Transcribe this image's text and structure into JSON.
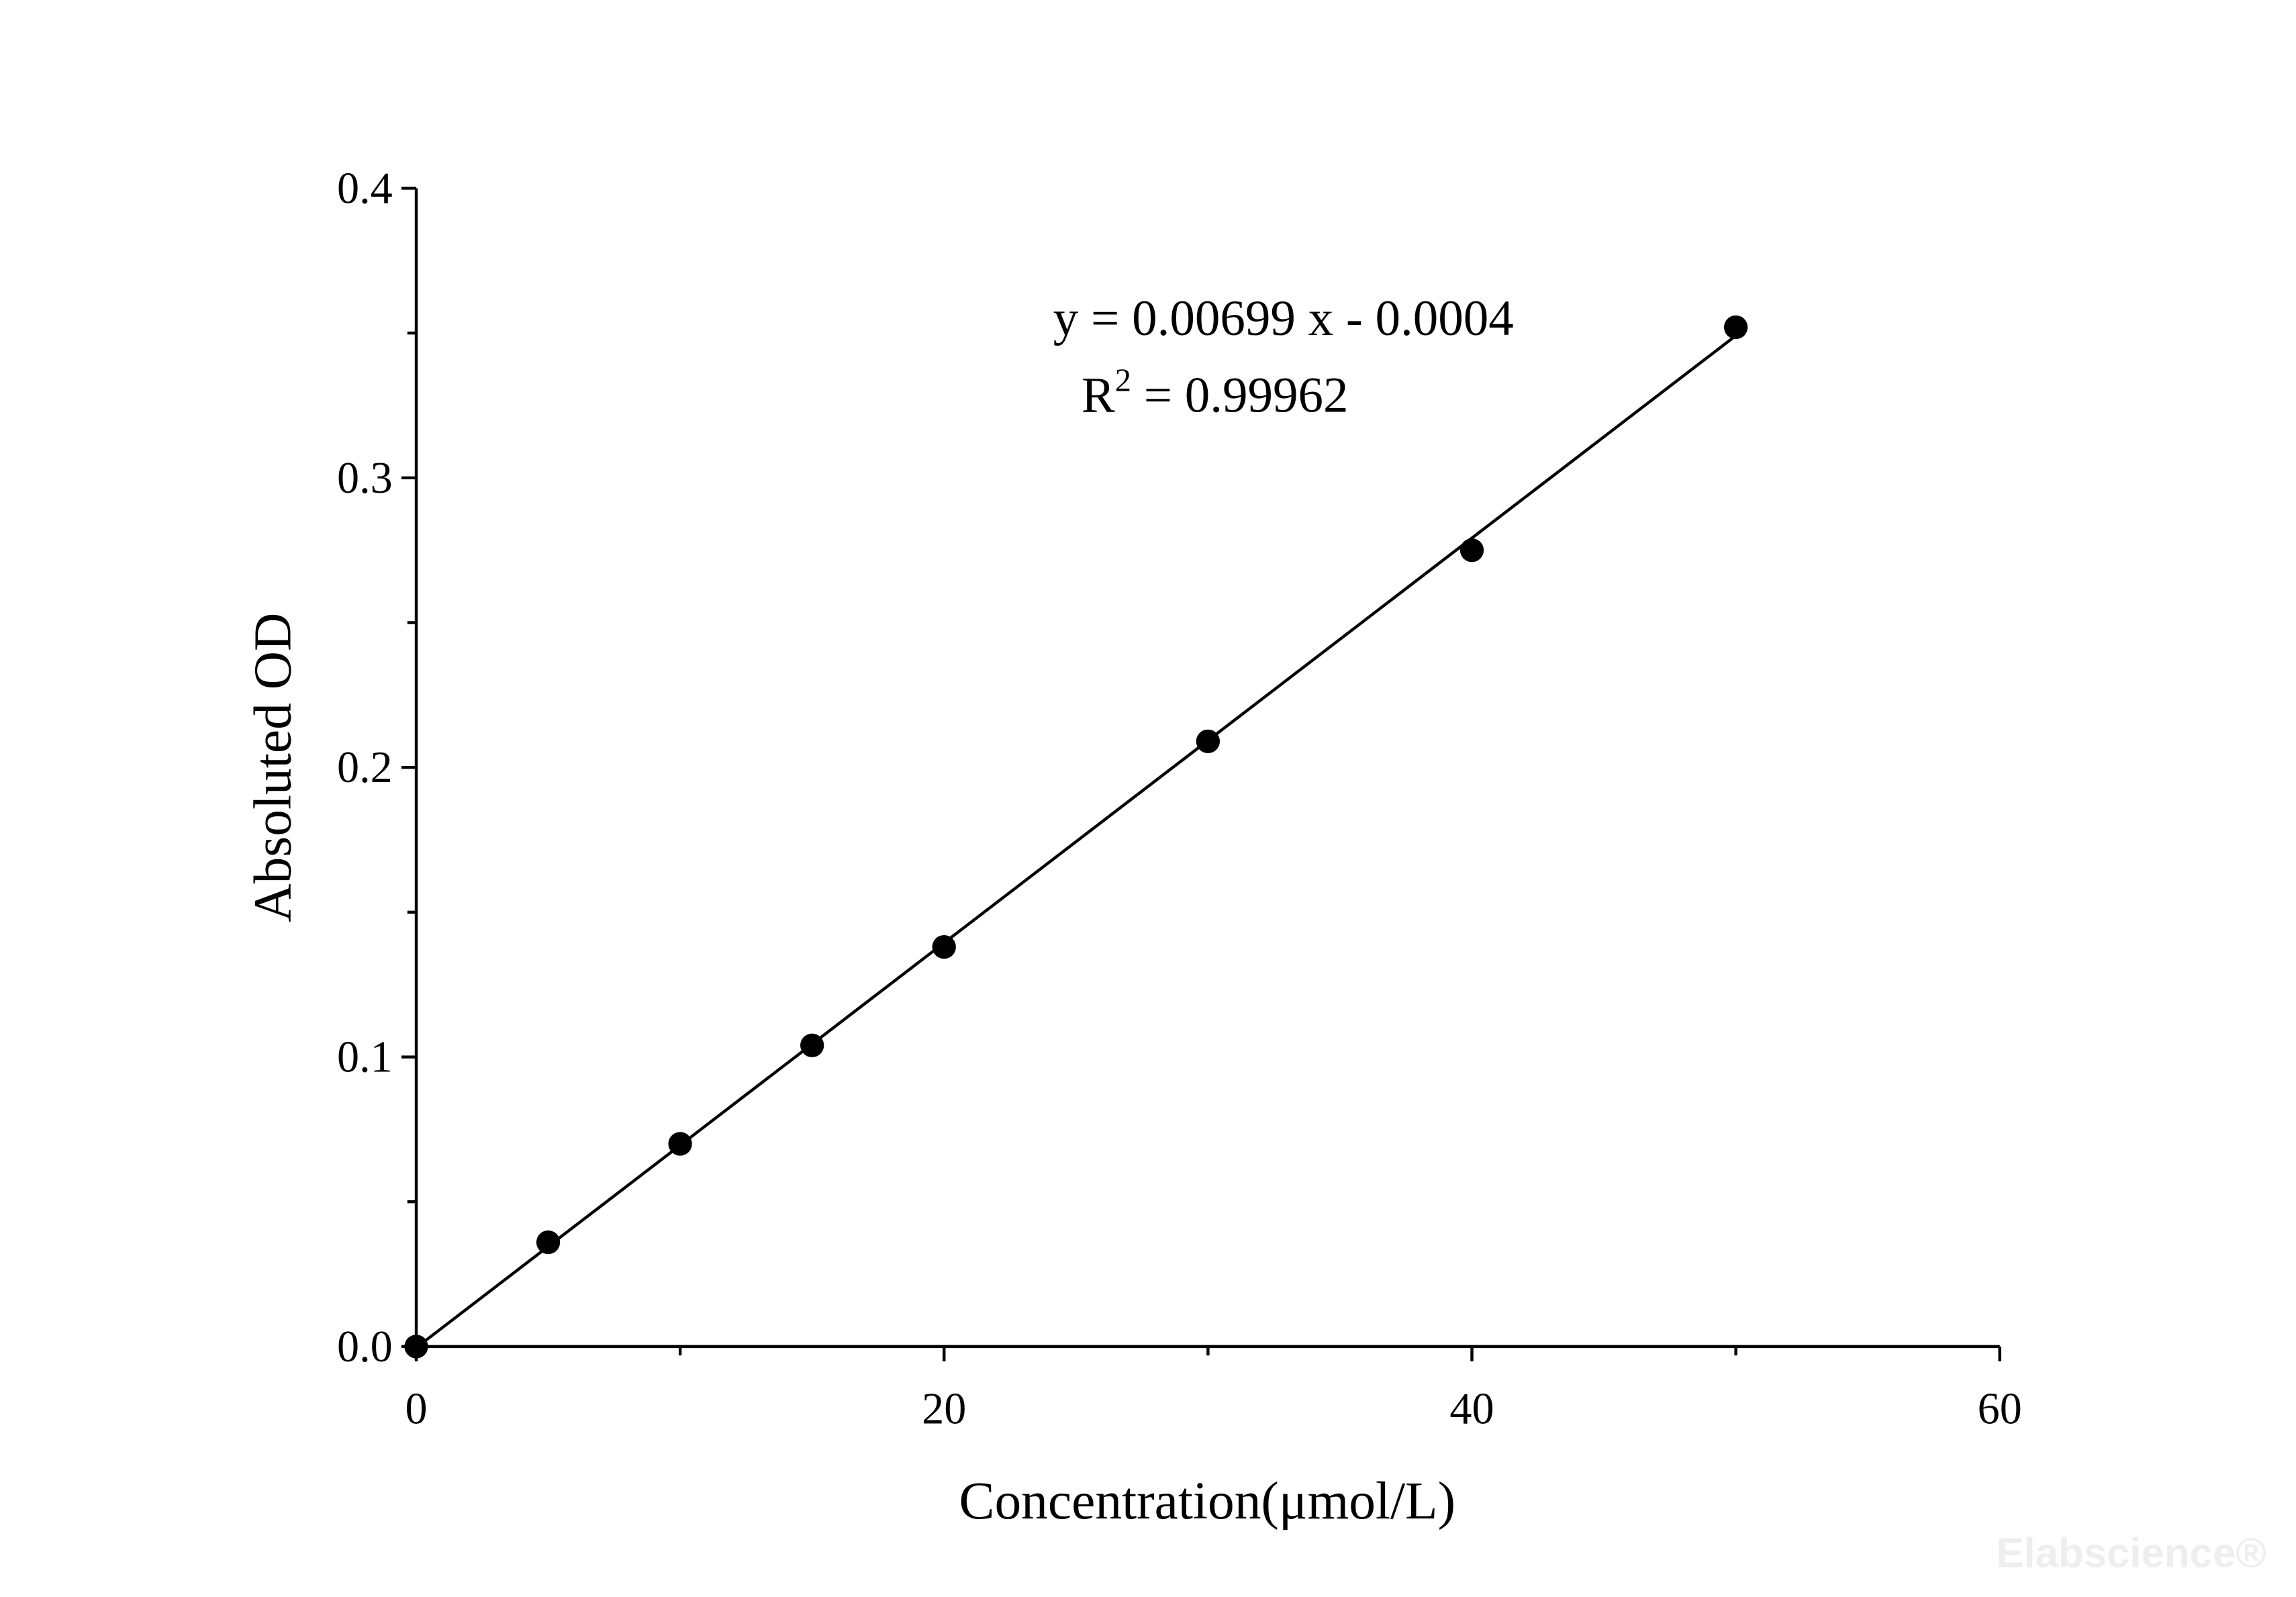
{
  "chart_data": {
    "type": "scatter",
    "x_label": "Concentration(μmol/L)",
    "y_label": "Absoluted OD",
    "annotations": [
      {
        "text": "y = 0.00699 x - 0.0004"
      },
      {
        "parts": [
          "R",
          "2",
          " = 0.99962"
        ]
      }
    ],
    "watermark": "Elabscience®",
    "series": [
      {
        "color": "#000000",
        "style": "points",
        "x": [
          0,
          5,
          10,
          15,
          20,
          30,
          40,
          50
        ],
        "values": [
          0,
          0.036,
          0.07,
          0.104,
          0.138,
          0.209,
          0.275,
          0.352
        ]
      },
      {
        "color": "#000000",
        "style": "line",
        "x": [
          0,
          50
        ],
        "values": [
          -0.0004,
          0.3491
        ]
      }
    ],
    "xlim": [
      0,
      60
    ],
    "ylim": [
      0,
      0.4
    ],
    "xticks": [
      0,
      20,
      40,
      60
    ],
    "xminor": [
      10,
      30,
      50
    ],
    "yticks": [
      {
        "value": 0,
        "label": "0.0"
      },
      {
        "value": 0.1,
        "label": "0.1"
      },
      {
        "value": 0.2,
        "label": "0.2"
      },
      {
        "value": 0.3,
        "label": "0.3"
      },
      {
        "value": 0.4,
        "label": "0.4"
      }
    ],
    "yminor": [
      0.05,
      0.15,
      0.25,
      0.35
    ]
  }
}
